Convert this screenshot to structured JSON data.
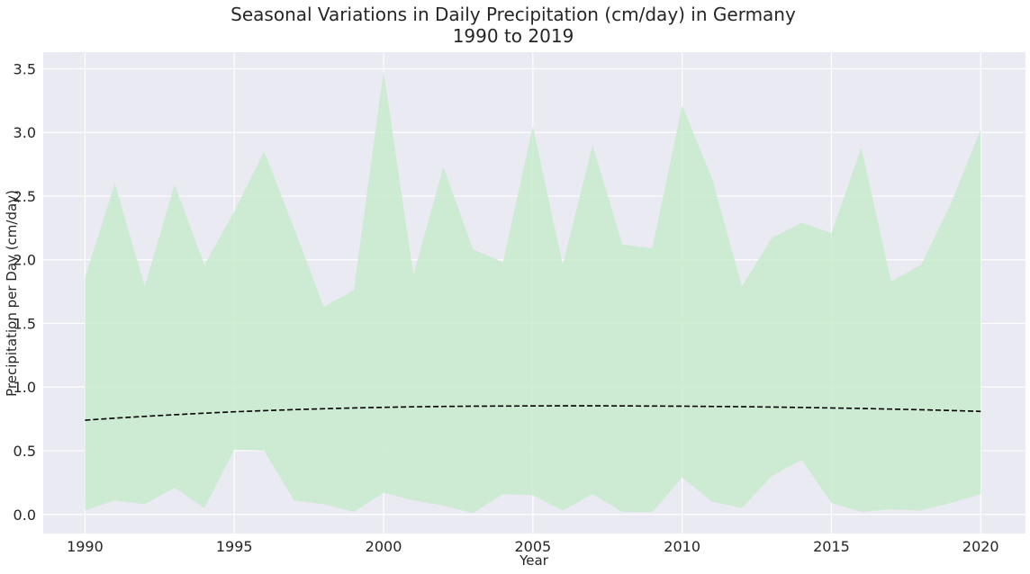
{
  "chart_data": {
    "type": "area",
    "title": "Seasonal Variations in Daily Precipitation (cm/day) in Germany",
    "subtitle": "1990 to 2019",
    "xlabel": "Year",
    "ylabel": "Precipitation per Day (cm/day)",
    "xlim": [
      1988.6,
      2021.5
    ],
    "ylim": [
      -0.15,
      3.63
    ],
    "x_ticks": [
      1990,
      1995,
      2000,
      2005,
      2010,
      2015,
      2020
    ],
    "y_ticks": [
      0.0,
      0.5,
      1.0,
      1.5,
      2.0,
      2.5,
      3.0,
      3.5
    ],
    "y_tick_labels": [
      "0.0",
      "0.5",
      "1.0",
      "1.5",
      "2.0",
      "2.5",
      "3.0",
      "3.5"
    ],
    "grid": true,
    "x": [
      1990,
      1991,
      1992,
      1993,
      1994,
      1995,
      1996,
      1997,
      1998,
      1999,
      2000,
      2001,
      2002,
      2003,
      2004,
      2005,
      2006,
      2007,
      2008,
      2009,
      2010,
      2011,
      2012,
      2013,
      2014,
      2015,
      2016,
      2017,
      2018,
      2019,
      2020
    ],
    "series": [
      {
        "kind": "range",
        "lower": [
          0.03,
          0.11,
          0.08,
          0.21,
          0.05,
          0.51,
          0.5,
          0.11,
          0.08,
          0.02,
          0.17,
          0.11,
          0.07,
          0.01,
          0.16,
          0.15,
          0.03,
          0.16,
          0.02,
          0.02,
          0.29,
          0.1,
          0.05,
          0.3,
          0.43,
          0.09,
          0.02,
          0.04,
          0.03,
          0.09,
          0.16
        ],
        "upper": [
          1.86,
          2.6,
          1.79,
          2.59,
          1.96,
          2.38,
          2.85,
          2.25,
          1.63,
          1.76,
          3.48,
          1.88,
          2.73,
          2.08,
          1.98,
          3.05,
          1.96,
          2.9,
          2.12,
          2.09,
          3.21,
          2.64,
          1.79,
          2.17,
          2.29,
          2.21,
          2.88,
          1.83,
          1.96,
          2.44,
          3.02
        ],
        "color": "#c8ebcc"
      },
      {
        "kind": "line",
        "style": "dashed",
        "values": [
          0.74,
          0.756,
          0.77,
          0.783,
          0.795,
          0.806,
          0.815,
          0.823,
          0.83,
          0.836,
          0.841,
          0.845,
          0.848,
          0.85,
          0.851,
          0.852,
          0.853,
          0.853,
          0.852,
          0.851,
          0.85,
          0.848,
          0.846,
          0.843,
          0.84,
          0.836,
          0.832,
          0.827,
          0.822,
          0.816,
          0.809
        ],
        "color": "#000000"
      }
    ],
    "colors": {
      "background": "#eaeaf2",
      "grid": "#ffffff",
      "text": "#262626"
    }
  }
}
